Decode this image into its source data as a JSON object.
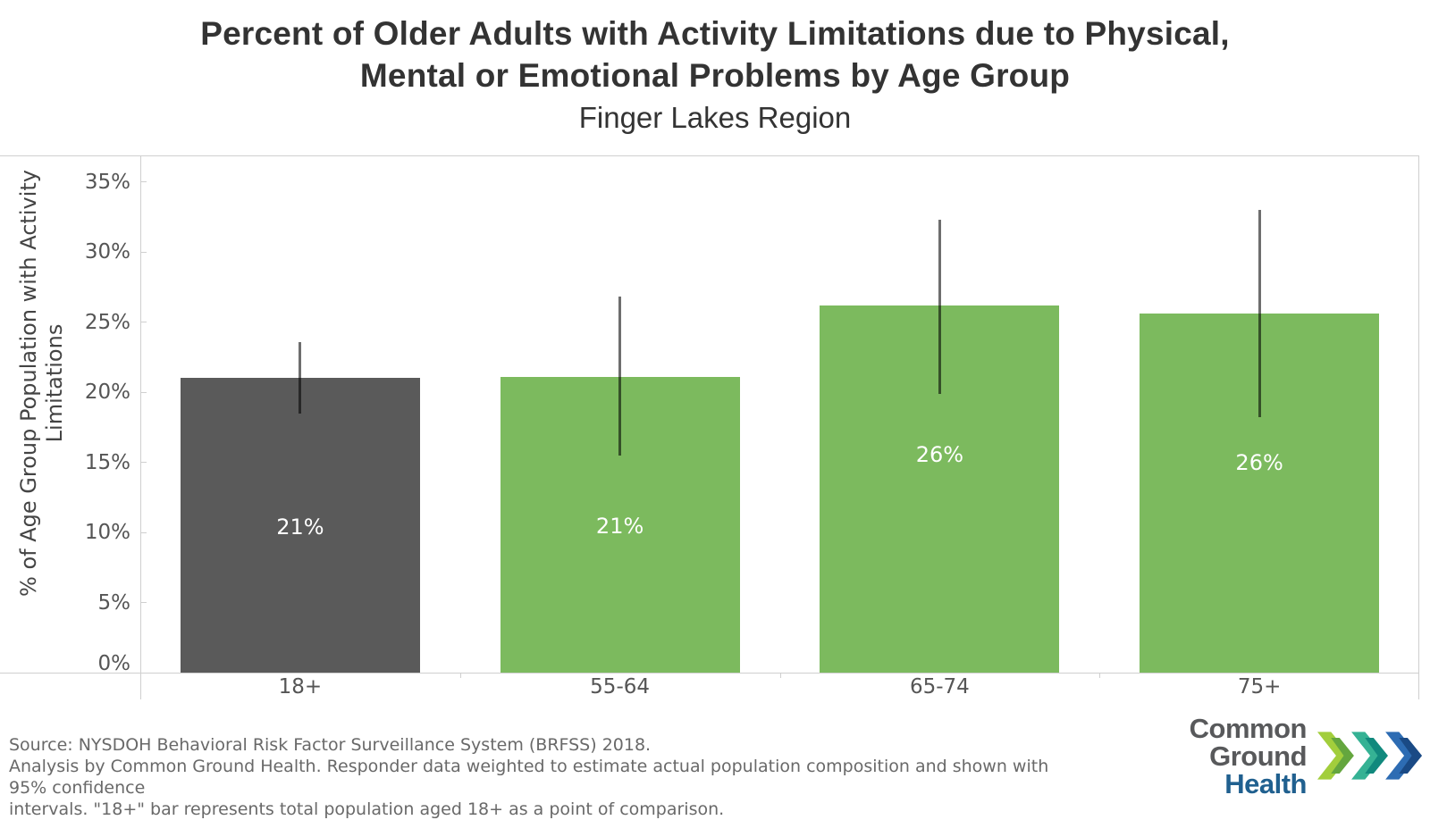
{
  "title": {
    "lines": [
      "Percent of Older Adults with Activity Limitations due to Physical,",
      "Mental or Emotional Problems by Age Group"
    ],
    "subtitle": "Finger Lakes Region"
  },
  "y_axis": {
    "title_lines": [
      "% of Age Group Population with Activity",
      "Limitations"
    ],
    "ticks": [
      {
        "value": 0,
        "label": "0%"
      },
      {
        "value": 5,
        "label": "5%"
      },
      {
        "value": 10,
        "label": "10%"
      },
      {
        "value": 15,
        "label": "15%"
      },
      {
        "value": 20,
        "label": "20%"
      },
      {
        "value": 25,
        "label": "25%"
      },
      {
        "value": 30,
        "label": "30%"
      },
      {
        "value": 35,
        "label": "35%"
      }
    ]
  },
  "chart_data": {
    "type": "bar",
    "title": "Percent of Older Adults with Activity Limitations due to Physical, Mental or Emotional Problems by Age Group",
    "subtitle": "Finger Lakes Region",
    "xlabel": "",
    "ylabel": "% of Age Group Population with Activity Limitations",
    "ylim": [
      0,
      36.9
    ],
    "grid": false,
    "error_bar_meaning": "95% confidence interval",
    "categories": [
      "18+",
      "55-64",
      "65-74",
      "75+"
    ],
    "values": [
      21,
      21,
      26,
      26
    ],
    "bars": [
      {
        "category": "18+",
        "value": 21.0,
        "label": "21%",
        "ci_low": 18.5,
        "ci_high": 23.6,
        "color": "#5a5a5a"
      },
      {
        "category": "55-64",
        "value": 21.1,
        "label": "21%",
        "ci_low": 15.5,
        "ci_high": 26.8,
        "color": "#7cba5e"
      },
      {
        "category": "65-74",
        "value": 26.2,
        "label": "26%",
        "ci_low": 19.9,
        "ci_high": 32.3,
        "color": "#7cba5e"
      },
      {
        "category": "75+",
        "value": 25.6,
        "label": "26%",
        "ci_low": 18.2,
        "ci_high": 33.0,
        "color": "#7cba5e"
      }
    ]
  },
  "footer": {
    "lines": [
      "Source: NYSDOH Behavioral Risk Factor Surveillance System (BRFSS) 2018.",
      "Analysis by Common Ground Health. Responder data weighted to estimate actual population composition and shown with 95% confidence",
      "intervals. \"18+\" bar represents total population aged 18+ as a point of comparison."
    ]
  },
  "logo": {
    "line1": "Common Ground",
    "line2": "Health",
    "chevrons": [
      {
        "light": "#a2ce3c",
        "dark": "#64a63e"
      },
      {
        "light": "#35b294",
        "dark": "#11897d"
      },
      {
        "light": "#2d6cb3",
        "dark": "#1a4a85"
      }
    ]
  },
  "colors": {
    "axis_line": "#cfcfcf",
    "error_bar": "rgba(0,0,0,0.57)",
    "title_text": "#333333",
    "axis_text": "#555555",
    "footer_text": "#696969",
    "logo_gray": "#58595b",
    "logo_blue": "#20608f"
  }
}
